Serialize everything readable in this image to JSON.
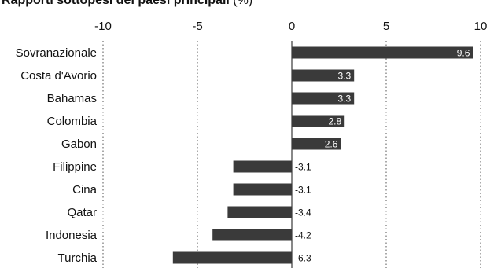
{
  "title_bold": "Rapporti sottopesi dei paesi principali",
  "title_unit": " (%)",
  "chart_data": {
    "type": "bar",
    "orientation": "horizontal",
    "title": "Rapporti sottopesi dei paesi principali (%)",
    "categories": [
      "Sovranazionale",
      "Costa d'Avorio",
      "Bahamas",
      "Colombia",
      "Gabon",
      "Filippine",
      "Cina",
      "Qatar",
      "Indonesia",
      "Turchia"
    ],
    "values": [
      9.6,
      3.3,
      3.3,
      2.8,
      2.6,
      -3.1,
      -3.1,
      -3.4,
      -4.2,
      -6.3
    ],
    "data_labels": [
      "9.6",
      "3.3",
      "3.3",
      "2.8",
      "2.6",
      "-3.1",
      "-3.1",
      "-3.4",
      "-4.2",
      "-6.3"
    ],
    "xlim": [
      -10,
      10
    ],
    "x_ticks": [
      -10,
      -5,
      0,
      5,
      10
    ],
    "x_tick_labels": [
      "-10",
      "-5",
      "0",
      "5",
      "10"
    ],
    "x_axis_position": "top",
    "grid": "vertical dotted",
    "bar_color": "#3a3a3a"
  }
}
